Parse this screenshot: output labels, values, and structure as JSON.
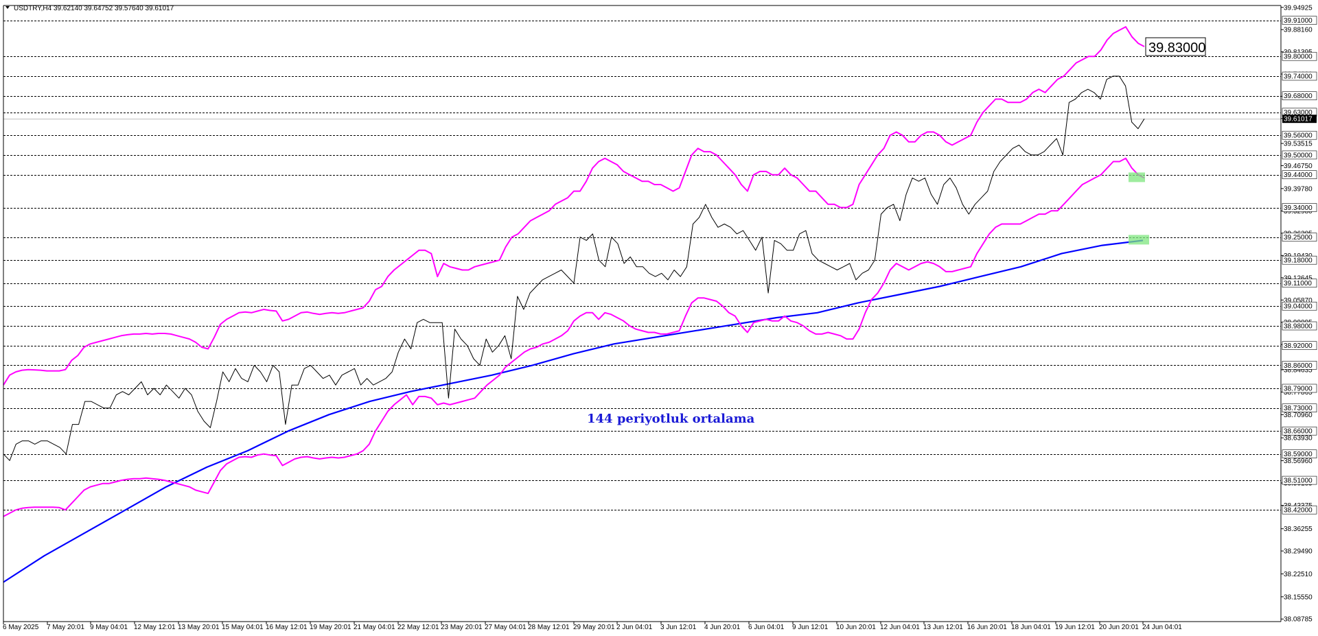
{
  "header": {
    "symbol": "USDTRY,H4",
    "ohlc": "39.62140 39.64752 39.57640 39.61017"
  },
  "annotations": {
    "ma_label": "144 periyotluk ortalama",
    "price_box": "39.83000"
  },
  "colors": {
    "background": "#ffffff",
    "price": "#000000",
    "envelope": "#ff00ff",
    "ma": "#0000ff",
    "level_line": "#000000",
    "highlight": "#7fe57f"
  },
  "chart_data": {
    "type": "line",
    "ylim": [
      38.08,
      39.955
    ],
    "x_tick_labels": [
      "6 May 2025",
      "7 May 20:01",
      "9 May 04:01",
      "12 May 12:01",
      "13 May 20:01",
      "15 May 04:01",
      "16 May 12:01",
      "19 May 20:01",
      "21 May 04:01",
      "22 May 12:01",
      "23 May 20:01",
      "27 May 04:01",
      "28 May 12:01",
      "29 May 20:01",
      "2 Jun 04:01",
      "3 Jun 12:01",
      "4 Jun 20:01",
      "6 Jun 04:01",
      "9 Jun 12:01",
      "10 Jun 20:01",
      "12 Jun 04:01",
      "13 Jun 12:01",
      "16 Jun 20:01",
      "18 Jun 04:01",
      "19 Jun 12:01",
      "20 Jun 20:01",
      "24 Jun 04:01"
    ],
    "y_tick_labels": [
      "39.94925",
      "39.88160",
      "39.81395",
      "39.74630",
      "39.67865",
      "39.61100",
      "39.53515",
      "39.46750",
      "39.39780",
      "39.32980",
      "39.26205",
      "39.19430",
      "39.12645",
      "39.05870",
      "38.99095",
      "38.92320",
      "38.84635",
      "38.77865",
      "38.70960",
      "38.63930",
      "38.56960",
      "38.50185",
      "38.43375",
      "38.36255",
      "38.29490",
      "38.22510",
      "38.15550",
      "38.08785"
    ],
    "horizontal_levels": [
      "39.91000",
      "39.80000",
      "39.74000",
      "39.68000",
      "39.63000",
      "39.56000",
      "39.50000",
      "39.44000",
      "39.34000",
      "39.25000",
      "39.18000",
      "39.11000",
      "39.04000",
      "38.98000",
      "38.92000",
      "38.86000",
      "38.79000",
      "38.73000",
      "38.66000",
      "38.59000",
      "38.51000",
      "38.42000"
    ],
    "current_price": "39.61017",
    "series": [
      {
        "values": [
          38.59,
          38.57,
          38.62,
          38.63,
          38.63,
          38.62,
          38.63,
          38.63,
          38.62,
          38.61,
          38.59,
          38.68,
          38.68,
          38.75,
          38.75,
          38.74,
          38.73,
          38.73,
          38.77,
          38.78,
          38.77,
          38.79,
          38.81,
          38.77,
          38.79,
          38.77,
          38.8,
          38.78,
          38.76,
          38.79,
          38.77,
          38.72,
          38.69,
          38.67,
          38.75,
          38.84,
          38.81,
          38.85,
          38.82,
          38.81,
          38.86,
          38.84,
          38.81,
          38.86,
          38.84,
          38.68,
          38.8,
          38.8,
          38.85,
          38.86,
          38.84,
          38.82,
          38.83,
          38.8,
          38.83,
          38.84,
          38.85,
          38.8,
          38.82,
          38.8,
          38.81,
          38.82,
          38.84,
          38.9,
          38.94,
          38.91,
          38.99,
          39.0,
          38.99,
          38.99,
          38.99,
          38.76,
          38.97,
          38.94,
          38.92,
          38.88,
          38.86,
          38.94,
          38.9,
          38.92,
          38.95,
          38.88,
          39.07,
          39.03,
          39.08,
          39.1,
          39.12,
          39.13,
          39.14,
          39.15,
          39.13,
          39.11,
          39.25,
          39.24,
          39.26,
          39.18,
          39.16,
          39.25,
          39.23,
          39.17,
          39.19,
          39.16,
          39.16,
          39.14,
          39.13,
          39.14,
          39.12,
          39.15,
          39.13,
          39.16,
          39.29,
          39.31,
          39.35,
          39.31,
          39.28,
          39.29,
          39.28,
          39.26,
          39.27,
          39.24,
          39.21,
          39.25,
          39.08,
          39.24,
          39.23,
          39.21,
          39.21,
          39.26,
          39.27,
          39.2,
          39.18,
          39.17,
          39.16,
          39.15,
          39.16,
          39.17,
          39.12,
          39.14,
          39.15,
          39.18,
          39.32,
          39.34,
          39.35,
          39.3,
          39.38,
          39.43,
          39.42,
          39.43,
          39.38,
          39.35,
          39.41,
          39.43,
          39.4,
          39.35,
          39.32,
          39.35,
          39.37,
          39.39,
          39.45,
          39.48,
          39.5,
          39.52,
          39.53,
          39.51,
          39.5,
          39.5,
          39.51,
          39.53,
          39.55,
          39.5,
          39.66,
          39.67,
          39.69,
          39.7,
          39.69,
          39.67,
          39.73,
          39.74,
          39.74,
          39.71,
          39.6,
          39.58,
          39.61
        ]
      },
      {
        "values": [
          38.8,
          38.83,
          38.84,
          38.845,
          38.847,
          38.846,
          38.845,
          38.843,
          38.843,
          38.843,
          38.847,
          38.875,
          38.89,
          38.915,
          38.925,
          38.93,
          38.935,
          38.94,
          38.945,
          38.95,
          38.953,
          38.955,
          38.955,
          38.957,
          38.955,
          38.957,
          38.957,
          38.955,
          38.95,
          38.945,
          38.94,
          38.93,
          38.915,
          38.91,
          38.945,
          38.985,
          39.0,
          39.01,
          39.02,
          39.022,
          39.02,
          39.025,
          39.03,
          39.027,
          39.025,
          38.995,
          39.0,
          39.01,
          39.02,
          39.022,
          39.018,
          39.015,
          39.018,
          39.02,
          39.018,
          39.02,
          39.025,
          39.03,
          39.035,
          39.055,
          39.09,
          39.1,
          39.13,
          39.15,
          39.165,
          39.18,
          39.195,
          39.21,
          39.21,
          39.2,
          39.13,
          39.17,
          39.16,
          39.155,
          39.15,
          39.15,
          39.16,
          39.165,
          39.17,
          39.175,
          39.18,
          39.22,
          39.25,
          39.26,
          39.28,
          39.3,
          39.31,
          39.32,
          39.33,
          39.35,
          39.36,
          39.37,
          39.39,
          39.39,
          39.42,
          39.46,
          39.48,
          39.49,
          39.48,
          39.47,
          39.45,
          39.44,
          39.43,
          39.42,
          39.42,
          39.41,
          39.41,
          39.4,
          39.39,
          39.4,
          39.45,
          39.5,
          39.52,
          39.51,
          39.51,
          39.5,
          39.48,
          39.46,
          39.44,
          39.41,
          39.39,
          39.44,
          39.45,
          39.45,
          39.44,
          39.44,
          39.46,
          39.44,
          39.43,
          39.41,
          39.39,
          39.39,
          39.37,
          39.35,
          39.35,
          39.34,
          39.34,
          39.35,
          39.41,
          39.44,
          39.47,
          39.5,
          39.52,
          39.56,
          39.57,
          39.56,
          39.54,
          39.54,
          39.56,
          39.57,
          39.57,
          39.56,
          39.54,
          39.53,
          39.54,
          39.55,
          39.56,
          39.6,
          39.63,
          39.65,
          39.67,
          39.67,
          39.66,
          39.66,
          39.66,
          39.67,
          39.69,
          39.7,
          39.69,
          39.71,
          39.73,
          39.74,
          39.76,
          39.78,
          39.79,
          39.8,
          39.8,
          39.82,
          39.85,
          39.87,
          39.88,
          39.89,
          39.86,
          39.84,
          39.83
        ]
      },
      {
        "values": [
          38.4,
          38.41,
          38.42,
          38.425,
          38.427,
          38.428,
          38.428,
          38.428,
          38.428,
          38.427,
          38.42,
          38.44,
          38.46,
          38.48,
          38.49,
          38.495,
          38.5,
          38.5,
          38.505,
          38.51,
          38.513,
          38.515,
          38.515,
          38.517,
          38.515,
          38.513,
          38.51,
          38.505,
          38.5,
          38.495,
          38.49,
          38.48,
          38.475,
          38.47,
          38.505,
          38.54,
          38.56,
          38.57,
          38.58,
          38.582,
          38.58,
          38.587,
          38.59,
          38.587,
          38.585,
          38.555,
          38.565,
          38.575,
          38.58,
          38.582,
          38.578,
          38.575,
          38.578,
          38.58,
          38.578,
          38.58,
          38.585,
          38.59,
          38.6,
          38.62,
          38.66,
          38.69,
          38.72,
          38.74,
          38.755,
          38.77,
          38.74,
          38.765,
          38.765,
          38.76,
          38.74,
          38.745,
          38.74,
          38.745,
          38.75,
          38.755,
          38.76,
          38.78,
          38.8,
          38.815,
          38.83,
          38.855,
          38.87,
          38.885,
          38.9,
          38.91,
          38.915,
          38.925,
          38.93,
          38.94,
          38.95,
          38.965,
          38.995,
          39.01,
          39.02,
          39.02,
          39.0,
          39.02,
          39.015,
          39.005,
          38.995,
          38.98,
          38.97,
          38.965,
          38.96,
          38.96,
          38.955,
          38.955,
          38.96,
          38.965,
          39.01,
          39.05,
          39.065,
          39.065,
          39.06,
          39.055,
          39.04,
          39.02,
          39.01,
          38.98,
          38.96,
          38.99,
          38.995,
          39.0,
          38.995,
          38.995,
          39.01,
          38.995,
          38.99,
          38.98,
          38.965,
          38.955,
          38.955,
          38.96,
          38.955,
          38.95,
          38.94,
          38.94,
          38.97,
          39.02,
          39.06,
          39.08,
          39.11,
          39.15,
          39.17,
          39.16,
          39.15,
          39.16,
          39.17,
          39.175,
          39.17,
          39.16,
          39.145,
          39.145,
          39.15,
          39.155,
          39.16,
          39.2,
          39.23,
          39.26,
          39.28,
          39.29,
          39.29,
          39.29,
          39.29,
          39.3,
          39.31,
          39.32,
          39.32,
          39.33,
          39.33,
          39.35,
          39.37,
          39.39,
          39.41,
          39.42,
          39.43,
          39.44,
          39.46,
          39.48,
          39.48,
          39.49,
          39.46,
          39.44,
          39.43
        ]
      },
      {
        "values": [
          38.2,
          38.28,
          38.35,
          38.42,
          38.49,
          38.55,
          38.6,
          38.66,
          38.71,
          38.75,
          38.78,
          38.805,
          38.83,
          38.86,
          38.895,
          38.925,
          38.945,
          38.965,
          38.985,
          39.005,
          39.02,
          39.05,
          39.075,
          39.1,
          39.13,
          39.16,
          39.2,
          39.225,
          39.24
        ]
      }
    ]
  }
}
